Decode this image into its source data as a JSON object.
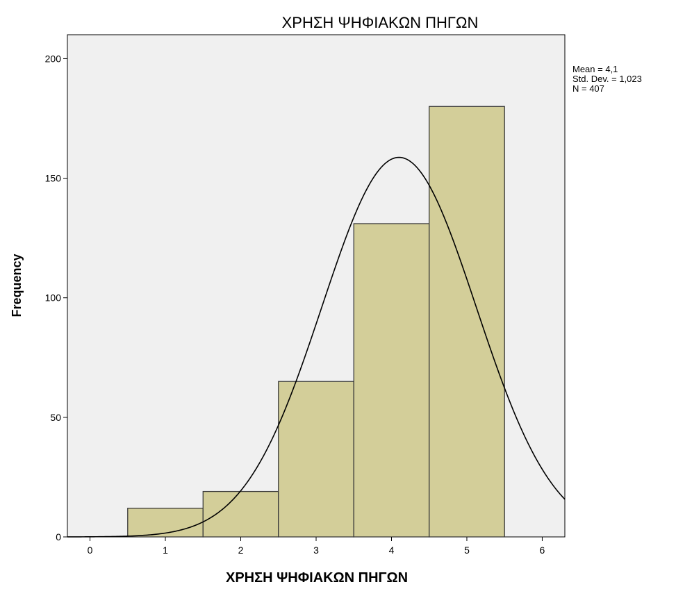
{
  "chart_data": {
    "type": "bar",
    "title": "ΧΡΗΣΗ ΨΗΦΙΑΚΩΝ ΠΗΓΩΝ",
    "xlabel": "ΧΡΗΣΗ ΨΗΦΙΑΚΩΝ ΠΗΓΩΝ",
    "ylabel": "Frequency",
    "categories": [
      1,
      2,
      3,
      4,
      5
    ],
    "bins": [
      [
        0.5,
        1.5
      ],
      [
        1.5,
        2.5
      ],
      [
        2.5,
        3.5
      ],
      [
        3.5,
        4.5
      ],
      [
        4.5,
        5.5
      ]
    ],
    "values": [
      12,
      19,
      65,
      131,
      180
    ],
    "xlim": [
      -0.3,
      6.3
    ],
    "ylim": [
      0,
      210
    ],
    "x_ticks": [
      "0",
      "1",
      "2",
      "3",
      "4",
      "5",
      "6"
    ],
    "y_ticks": [
      "0",
      "50",
      "100",
      "150",
      "200"
    ],
    "normal_curve": {
      "mean": 4.1,
      "std_dev": 1.023,
      "n": 407,
      "bin_width": 1
    },
    "stats": [
      "Mean = 4,1",
      "Std. Dev. = 1,023",
      "N = 407"
    ],
    "grid": false,
    "colors": {
      "bar_fill": "#d3ce99",
      "bar_stroke": "#3a3a3a",
      "plot_bg": "#f0f0f0",
      "curve": "#000000"
    }
  }
}
